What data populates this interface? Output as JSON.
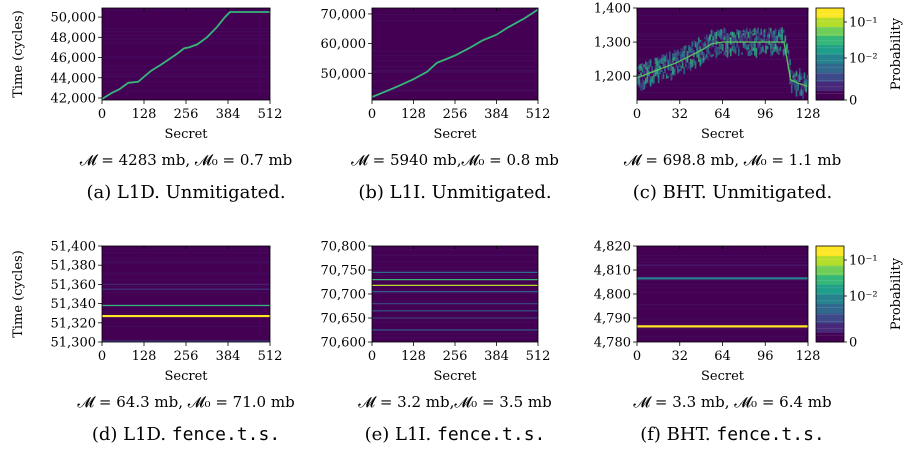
{
  "colors": {
    "background": "#440154",
    "trace": "#35b779",
    "trace_light": "#5ec962",
    "highlight": "#fde725",
    "colormap": [
      "#440154",
      "#482878",
      "#3e4989",
      "#31688e",
      "#26828e",
      "#1f9e89",
      "#35b779",
      "#6ece58",
      "#b5de2b",
      "#fde725"
    ]
  },
  "chart_data": [
    {
      "id": "a",
      "type": "heatmap",
      "ylabel": "Time (cycles)",
      "xlabel": "Secret",
      "xlim": [
        0,
        512
      ],
      "ylim": [
        41800,
        50900
      ],
      "xticks": [
        0,
        128,
        256,
        384,
        512
      ],
      "xtick_labels": [
        "0",
        "128",
        "256",
        "384",
        "512"
      ],
      "yticks": [
        42000,
        44000,
        46000,
        48000,
        50000
      ],
      "ytick_labels": [
        "42,000",
        "44,000",
        "46,000",
        "48,000",
        "50,000"
      ],
      "trace": {
        "x": [
          0,
          30,
          55,
          80,
          110,
          150,
          180,
          230,
          250,
          265,
          290,
          320,
          350,
          375,
          390,
          420,
          450,
          480,
          512
        ],
        "y": [
          41900,
          42500,
          42900,
          43500,
          43600,
          44700,
          45300,
          46400,
          46900,
          47000,
          47300,
          48000,
          49000,
          50000,
          50500,
          50500,
          50500,
          50500,
          50500
        ]
      },
      "metric": "𝓜 = 4283 mb, 𝓜₀ = 0.7 mb",
      "caption": "(a) L1D. Unmitigated."
    },
    {
      "id": "b",
      "type": "heatmap",
      "ylabel": "",
      "xlabel": "Secret",
      "xlim": [
        0,
        512
      ],
      "ylim": [
        41000,
        72000
      ],
      "xticks": [
        0,
        128,
        256,
        384,
        512
      ],
      "xtick_labels": [
        "0",
        "128",
        "256",
        "384",
        "512"
      ],
      "yticks": [
        50000,
        60000,
        70000
      ],
      "ytick_labels": [
        "50,000",
        "60,000",
        "70,000"
      ],
      "trace": {
        "x": [
          0,
          40,
          80,
          128,
          170,
          200,
          256,
          300,
          340,
          384,
          420,
          470,
          512
        ],
        "y": [
          42000,
          43800,
          45600,
          48000,
          50500,
          53500,
          56000,
          58500,
          61000,
          63000,
          65500,
          68500,
          71500
        ]
      },
      "metric": "𝓜 = 5940 mb,𝓜₀ = 0.8 mb",
      "caption": "(b) L1I. Unmitigated."
    },
    {
      "id": "c",
      "type": "heatmap",
      "ylabel": "",
      "xlabel": "Secret",
      "xlim": [
        0,
        128
      ],
      "ylim": [
        1130,
        1400
      ],
      "xticks": [
        0,
        32,
        64,
        96,
        128
      ],
      "xtick_labels": [
        "0",
        "32",
        "64",
        "96",
        "128"
      ],
      "yticks": [
        1200,
        1300,
        1400
      ],
      "ytick_labels": [
        "1,200",
        "1,300",
        "1,400"
      ],
      "trace": {
        "x": [
          0,
          10,
          20,
          30,
          40,
          50,
          56,
          64,
          80,
          96,
          110,
          115,
          120,
          128
        ],
        "y": [
          1195,
          1210,
          1225,
          1240,
          1260,
          1280,
          1295,
          1300,
          1300,
          1300,
          1300,
          1190,
          1180,
          1170
        ]
      },
      "colorbar": {
        "label": "Probability",
        "tick_labels": [
          "10⁻¹",
          "10⁻²",
          "0"
        ]
      },
      "metric": "𝓜 = 698.8 mb, 𝓜₀ = 1.1 mb",
      "caption": "(c) BHT. Unmitigated."
    },
    {
      "id": "d",
      "type": "heatmap",
      "ylabel": "Time (cycles)",
      "xlabel": "Secret",
      "xlim": [
        0,
        512
      ],
      "ylim": [
        51300,
        51400
      ],
      "xticks": [
        0,
        128,
        256,
        384,
        512
      ],
      "xtick_labels": [
        "0",
        "128",
        "256",
        "384",
        "512"
      ],
      "yticks": [
        51300,
        51320,
        51340,
        51360,
        51380,
        51400
      ],
      "ytick_labels": [
        "51,300",
        "51,320",
        "51,340",
        "51,360",
        "51,380",
        "51,400"
      ],
      "lines": [
        {
          "y": 51327,
          "color": "#fde725",
          "strength": 1.0
        },
        {
          "y": 51338,
          "color": "#35b779",
          "strength": 0.8
        },
        {
          "y": 51301,
          "color": "#3e4989",
          "strength": 0.5
        },
        {
          "y": 51355,
          "color": "#3e4989",
          "strength": 0.4
        },
        {
          "y": 51360,
          "color": "#482878",
          "strength": 0.4
        }
      ],
      "metric": "𝓜 = 64.3 mb, 𝓜₀ = 71.0 mb",
      "caption": "(d) L1D. fence.t.s."
    },
    {
      "id": "e",
      "type": "heatmap",
      "ylabel": "",
      "xlabel": "Secret",
      "xlim": [
        0,
        512
      ],
      "ylim": [
        70600,
        70800
      ],
      "xticks": [
        0,
        128,
        256,
        384,
        512
      ],
      "xtick_labels": [
        "0",
        "128",
        "256",
        "384",
        "512"
      ],
      "yticks": [
        70600,
        70650,
        70700,
        70750,
        70800
      ],
      "ytick_labels": [
        "70,600",
        "70,650",
        "70,700",
        "70,750",
        "70,800"
      ],
      "lines": [
        {
          "y": 70745,
          "color": "#31688e",
          "strength": 0.6
        },
        {
          "y": 70730,
          "color": "#35b779",
          "strength": 0.7
        },
        {
          "y": 70718,
          "color": "#b5de2b",
          "strength": 0.7
        },
        {
          "y": 70705,
          "color": "#31688e",
          "strength": 0.5
        },
        {
          "y": 70680,
          "color": "#3e4989",
          "strength": 0.5
        },
        {
          "y": 70665,
          "color": "#31688e",
          "strength": 0.5
        },
        {
          "y": 70650,
          "color": "#3e4989",
          "strength": 0.4
        },
        {
          "y": 70625,
          "color": "#31688e",
          "strength": 0.5
        }
      ],
      "metric": "𝓜 = 3.2 mb,𝓜₀ = 3.5 mb",
      "caption": "(e) L1I. fence.t.s."
    },
    {
      "id": "f",
      "type": "heatmap",
      "ylabel": "",
      "xlabel": "Secret",
      "xlim": [
        0,
        128
      ],
      "ylim": [
        4780,
        4820
      ],
      "xticks": [
        0,
        32,
        64,
        96,
        128
      ],
      "xtick_labels": [
        "0",
        "32",
        "64",
        "96",
        "128"
      ],
      "yticks": [
        4780,
        4790,
        4800,
        4810,
        4820
      ],
      "ytick_labels": [
        "4,780",
        "4,790",
        "4,800",
        "4,810",
        "4,820"
      ],
      "lines": [
        {
          "y": 4806.5,
          "color": "#26828e",
          "strength": 1.0
        },
        {
          "y": 4786.5,
          "color": "#fde725",
          "strength": 1.0
        },
        {
          "y": 4812,
          "color": "#482878",
          "strength": 0.4
        }
      ],
      "colorbar": {
        "label": "Probability",
        "tick_labels": [
          "10⁻¹",
          "10⁻²",
          "0"
        ]
      },
      "metric": "𝓜 = 3.3 mb, 𝓜₀ = 6.4 mb",
      "caption": "(f) BHT. fence.t.s."
    }
  ]
}
